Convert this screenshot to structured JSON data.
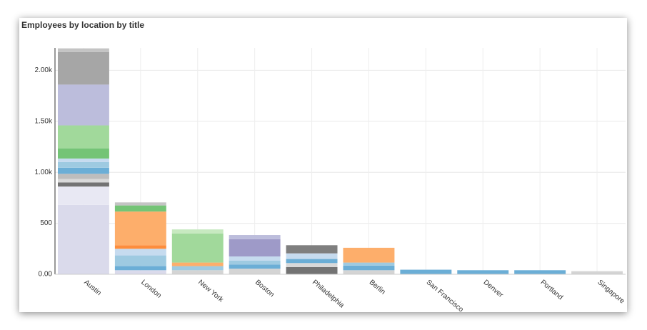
{
  "chart_data": {
    "type": "stacked_bar",
    "title": "Employees by location by title",
    "categories": [
      "Austin",
      "London",
      "New York",
      "Boston",
      "Philadelphia",
      "Berlin",
      "San Francisco",
      "Denver",
      "Portland",
      "Singapore"
    ],
    "series": [
      {
        "color": "#dadaeb",
        "values": [
          680,
          40,
          0,
          0,
          0,
          0,
          0,
          0,
          0,
          0
        ]
      },
      {
        "color": "#e8e8f3",
        "values": [
          180,
          0,
          0,
          0,
          0,
          0,
          0,
          0,
          0,
          0
        ]
      },
      {
        "color": "#d4d4d4",
        "values": [
          0,
          0,
          40,
          55,
          0,
          40,
          0,
          0,
          0,
          30
        ]
      },
      {
        "color": "#737373",
        "values": [
          40,
          0,
          0,
          0,
          70,
          0,
          0,
          0,
          0,
          0
        ]
      },
      {
        "color": "#d9d9d9",
        "values": [
          35,
          0,
          0,
          0,
          40,
          0,
          0,
          0,
          0,
          0
        ]
      },
      {
        "color": "#bdbdbd",
        "values": [
          50,
          0,
          0,
          0,
          0,
          0,
          0,
          0,
          0,
          0
        ]
      },
      {
        "color": "#6baed6",
        "values": [
          60,
          40,
          0,
          40,
          40,
          45,
          45,
          40,
          40,
          0
        ]
      },
      {
        "color": "#9ecae1",
        "values": [
          55,
          105,
          40,
          40,
          0,
          30,
          0,
          0,
          0,
          0
        ]
      },
      {
        "color": "#c6dbef",
        "values": [
          35,
          65,
          0,
          40,
          55,
          0,
          0,
          0,
          0,
          0
        ]
      },
      {
        "color": "#fd8d3c",
        "values": [
          0,
          35,
          0,
          0,
          0,
          0,
          0,
          0,
          0,
          0
        ]
      },
      {
        "color": "#fdae6b",
        "values": [
          0,
          330,
          35,
          0,
          0,
          145,
          0,
          0,
          0,
          0
        ]
      },
      {
        "color": "#74c476",
        "values": [
          100,
          60,
          0,
          0,
          0,
          0,
          0,
          0,
          0,
          0
        ]
      },
      {
        "color": "#a1d99b",
        "values": [
          225,
          0,
          285,
          0,
          0,
          0,
          0,
          0,
          0,
          0
        ]
      },
      {
        "color": "#c7e9c0",
        "values": [
          0,
          0,
          40,
          0,
          0,
          0,
          0,
          0,
          0,
          0
        ]
      },
      {
        "color": "#9e9ac8",
        "values": [
          0,
          0,
          0,
          170,
          0,
          0,
          0,
          0,
          0,
          0
        ]
      },
      {
        "color": "#bcbddc",
        "values": [
          400,
          0,
          0,
          40,
          0,
          0,
          0,
          0,
          0,
          0
        ]
      },
      {
        "color": "#7f7f7f",
        "values": [
          0,
          0,
          0,
          0,
          80,
          0,
          0,
          0,
          0,
          0
        ]
      },
      {
        "color": "#a6a6a6",
        "values": [
          320,
          0,
          0,
          0,
          0,
          0,
          0,
          0,
          0,
          0
        ]
      },
      {
        "color": "#c4c4c4",
        "values": [
          35,
          30,
          0,
          0,
          0,
          0,
          0,
          0,
          0,
          0
        ]
      }
    ],
    "ylim": [
      0,
      2220
    ],
    "yticks": [
      {
        "value": 0,
        "label": "0.00"
      },
      500,
      {
        "value": 1000,
        "label": "1.00k"
      },
      {
        "value": 1500,
        "label": "1.50k"
      },
      {
        "value": 2000,
        "label": "2.00k"
      }
    ],
    "grid": true
  }
}
